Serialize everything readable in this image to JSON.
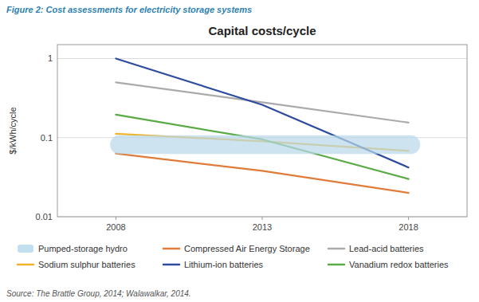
{
  "chart_data": {
    "type": "line",
    "title": "Capital costs/cycle",
    "annotations": [
      "Figure 2: Cost assessments for electricity storage systems",
      "Source: The Brattle Group, 2014; Walawalkar, 2014."
    ],
    "ylabel": "$/kWh/cycle",
    "x": [
      2008,
      2013,
      2018
    ],
    "series": [
      {
        "name": "Pumped-storage hydro",
        "type": "band",
        "color": "#b8d8ea",
        "x": [
          2007.8,
          2018.4
        ],
        "low": 0.062,
        "high": 0.107
      },
      {
        "name": "Compressed Air Energy Storage",
        "color": "#e07b39",
        "values": [
          0.063,
          0.038,
          0.02
        ]
      },
      {
        "name": "Lead-acid batteries",
        "color": "#aaaaaa",
        "values": [
          0.5,
          0.28,
          0.155
        ]
      },
      {
        "name": "Sodium sulphur batteries",
        "color": "#f0b428",
        "values": [
          0.112,
          0.09,
          0.068
        ]
      },
      {
        "name": "Lithium-ion batteries",
        "color": "#2e4b9e",
        "values": [
          1.0,
          0.26,
          0.042
        ]
      },
      {
        "name": "Vanadium redox batteries",
        "color": "#5aaa45",
        "values": [
          0.195,
          0.095,
          0.03
        ]
      }
    ],
    "log": "y",
    "ylim": [
      0.01,
      1.5
    ],
    "yticks": [
      0.01,
      0.1,
      1
    ],
    "xlim": [
      2006.0,
      2020.0
    ],
    "xticks": [
      2008,
      2013,
      2018
    ],
    "grid": true,
    "legend": "bottom"
  }
}
